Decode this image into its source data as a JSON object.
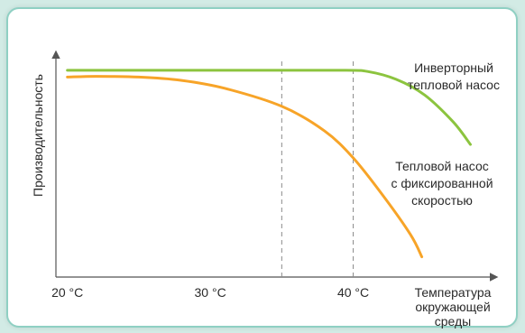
{
  "chart_data": {
    "type": "line",
    "title": "",
    "ylabel": "Производительность",
    "xlabel_lines": [
      "Температура",
      "окружающей",
      "среды"
    ],
    "x_ticks": [
      {
        "value": 20,
        "label": "20 °C"
      },
      {
        "value": 30,
        "label": "30 °C"
      },
      {
        "value": 40,
        "label": "40 °C"
      }
    ],
    "xlim": [
      19.2,
      50
    ],
    "ylim": [
      0,
      100
    ],
    "reference_lines_x": [
      35,
      40
    ],
    "series": [
      {
        "name_lines": [
          "Инверторный",
          "тепловой насос"
        ],
        "color": "#8cc43f",
        "points": [
          [
            20,
            92
          ],
          [
            25,
            92
          ],
          [
            30,
            92
          ],
          [
            35,
            92
          ],
          [
            39.5,
            92
          ],
          [
            41,
            91.5
          ],
          [
            43,
            88
          ],
          [
            45,
            81
          ],
          [
            47,
            69
          ],
          [
            48.2,
            59
          ]
        ]
      },
      {
        "name_lines": [
          "Тепловой насос",
          "с фиксированной",
          "скоростью"
        ],
        "color": "#f7a428",
        "points": [
          [
            20,
            89
          ],
          [
            22,
            89.3
          ],
          [
            25,
            89
          ],
          [
            28,
            87.5
          ],
          [
            31,
            84
          ],
          [
            35,
            76
          ],
          [
            38,
            65
          ],
          [
            40,
            53
          ],
          [
            42,
            37
          ],
          [
            44,
            19
          ],
          [
            44.8,
            9
          ]
        ]
      }
    ],
    "grid": false,
    "legend": "inline labels"
  }
}
